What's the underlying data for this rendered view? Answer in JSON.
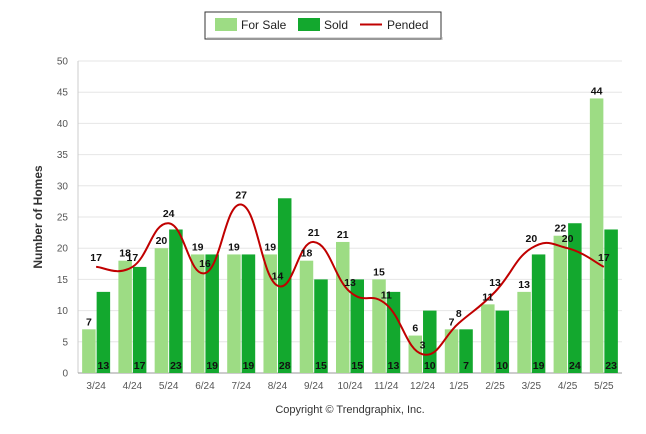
{
  "chart_data": {
    "type": "bar",
    "title": "",
    "xlabel": "",
    "ylabel": "Number of Homes",
    "ylim": [
      0,
      50
    ],
    "yticks": [
      0,
      5,
      10,
      15,
      20,
      25,
      30,
      35,
      40,
      45,
      50
    ],
    "grid": true,
    "legend_position": "top",
    "categories": [
      "3/24",
      "4/24",
      "5/24",
      "6/24",
      "7/24",
      "8/24",
      "9/24",
      "10/24",
      "11/24",
      "12/24",
      "1/25",
      "2/25",
      "3/25",
      "4/25",
      "5/25"
    ],
    "series": [
      {
        "name": "For Sale",
        "type": "bar",
        "color": "#9ddc84",
        "values": [
          7,
          18,
          20,
          19,
          19,
          19,
          18,
          21,
          15,
          6,
          7,
          11,
          13,
          22,
          44
        ]
      },
      {
        "name": "Sold",
        "type": "bar",
        "color": "#13a82e",
        "values": [
          13,
          17,
          23,
          19,
          19,
          28,
          15,
          15,
          13,
          10,
          7,
          10,
          19,
          24,
          23
        ]
      },
      {
        "name": "Pended",
        "type": "line",
        "color": "#c00000",
        "values": [
          17,
          17,
          24,
          16,
          27,
          14,
          21,
          13,
          11,
          3,
          8,
          13,
          20,
          20,
          17
        ]
      }
    ],
    "footer": "Copyright © Trendgraphix, Inc."
  }
}
